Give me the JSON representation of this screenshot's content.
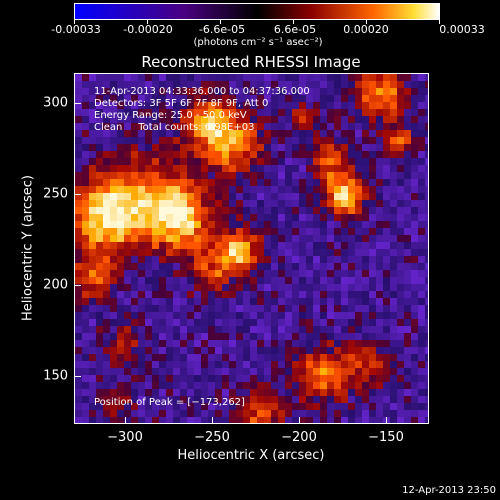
{
  "colorbar": {
    "ticks": [
      "-0.00033",
      "-0.00020",
      "-6.6e-05",
      "6.6e-05",
      "0.00020",
      "0.00033"
    ],
    "unit": "(photons cm⁻² s⁻¹ asec⁻²)",
    "colors": [
      "#0000ff",
      "#4a0080",
      "#000000",
      "#8b0000",
      "#ff6600",
      "#ffffff"
    ]
  },
  "chart_data": {
    "type": "heatmap",
    "title": "Reconstructed RHESSI Image",
    "xlabel": "Heliocentric X (arcsec)",
    "ylabel": "Heliocentric Y (arcsec)",
    "xlim": [
      -328,
      -134
    ],
    "ylim": [
      123,
      318
    ],
    "x_ticks": [
      "−300",
      "−250",
      "−200",
      "−150"
    ],
    "y_ticks": [
      "300",
      "250",
      "200",
      "150"
    ],
    "peak": [
      -173,
      262
    ]
  },
  "annotations": {
    "time_range": "11-Apr-2013 04:33:36.000 to 04:37:36.000",
    "detectors": "Detectors: 3F 5F 6F 7F 8F 9F, Att 0",
    "energy": "Energy Range: 25.0 - 50.0 keV",
    "method": "Clean     Total counts: 6.98E+03",
    "peak": "Position of Peak = [−173,262]"
  },
  "footer": {
    "timestamp": "12-Apr-2013 23:50"
  }
}
